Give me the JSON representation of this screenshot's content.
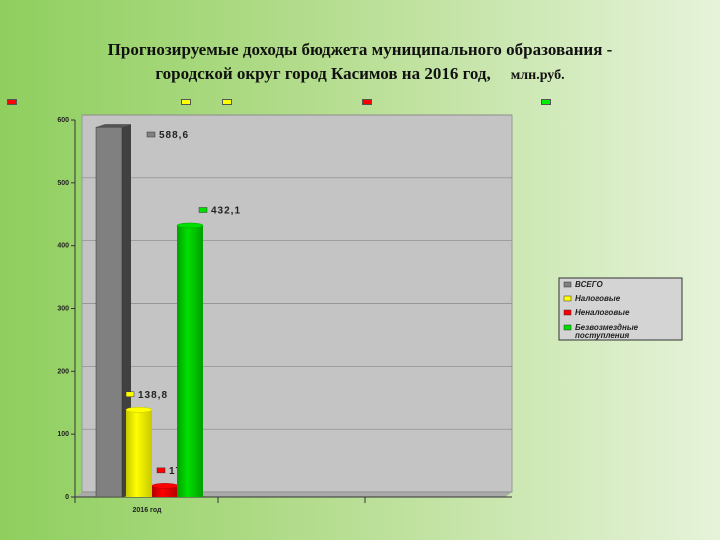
{
  "title_line1": "Прогнозируемые доходы бюджета муниципального образования -",
  "title_line2": "городской округ город Касимов на 2016 год,",
  "unit": "млн.руб.",
  "chart_data": {
    "type": "bar",
    "categories": [
      "2016 год"
    ],
    "series": [
      {
        "name": "ВСЕГО",
        "values": [
          588.6
        ],
        "label": "588,6",
        "color": "#808080"
      },
      {
        "name": "Налоговые",
        "values": [
          138.8
        ],
        "label": "138,8",
        "color": "#ffff00"
      },
      {
        "name": "Неналоговые",
        "values": [
          17.7
        ],
        "label": "17,7",
        "color": "#ff0000"
      },
      {
        "name": "Безвозмездные поступления",
        "values": [
          432.1
        ],
        "label": "432,1",
        "color": "#00e000"
      }
    ],
    "ylim": [
      0,
      600
    ],
    "yticks": [
      0,
      100,
      200,
      300,
      400,
      500,
      600
    ],
    "grid": true,
    "legend": "right",
    "style": "3d-cylinder"
  }
}
